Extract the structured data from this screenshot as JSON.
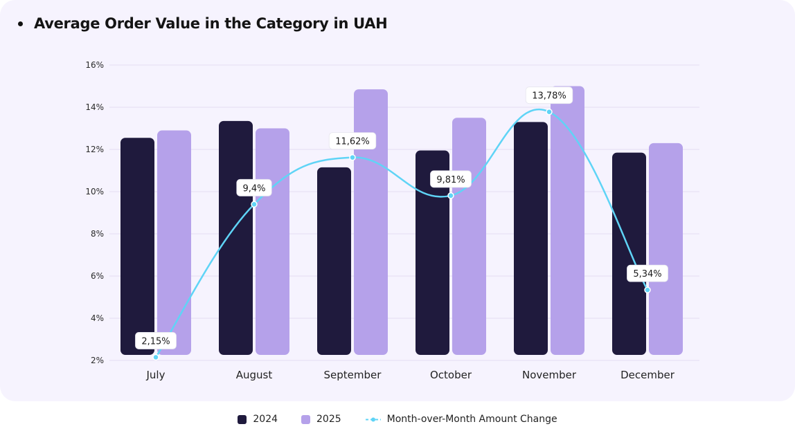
{
  "title": "Average Order Value in the Category in UAH",
  "colors": {
    "series_2024": "#1f1a3d",
    "series_2025": "#b5a1ea",
    "line": "#5fd4f6",
    "grid": "#e4def3",
    "background": "#f6f3fe"
  },
  "chart_data": {
    "type": "bar",
    "title": "Average Order Value in the Category in UAH",
    "xlabel": "",
    "ylabel": "",
    "categories": [
      "July",
      "August",
      "September",
      "October",
      "November",
      "December"
    ],
    "y_ticks": [
      "16%",
      "14%",
      "12%",
      "10%",
      "8%",
      "6%",
      "4%",
      "2%"
    ],
    "ylim": [
      2,
      16
    ],
    "grid": true,
    "legend_position": "bottom",
    "series": [
      {
        "name": "2024",
        "type": "bar",
        "values": [
          12.55,
          13.35,
          11.15,
          11.95,
          13.3,
          11.85
        ]
      },
      {
        "name": "2025",
        "type": "bar",
        "values": [
          12.9,
          13.0,
          14.85,
          13.5,
          15.0,
          12.3
        ]
      },
      {
        "name": "Month-over-Month Amount Change",
        "type": "line",
        "values": [
          2.15,
          9.4,
          11.62,
          9.81,
          13.78,
          5.34
        ],
        "labels": [
          "2,15%",
          "9,4%",
          "11,62%",
          "9,81%",
          "13,78%",
          "5,34%"
        ]
      }
    ]
  },
  "legend": {
    "items": [
      {
        "label": "2024"
      },
      {
        "label": "2025"
      },
      {
        "label": "Month-over-Month Amount Change"
      }
    ]
  }
}
